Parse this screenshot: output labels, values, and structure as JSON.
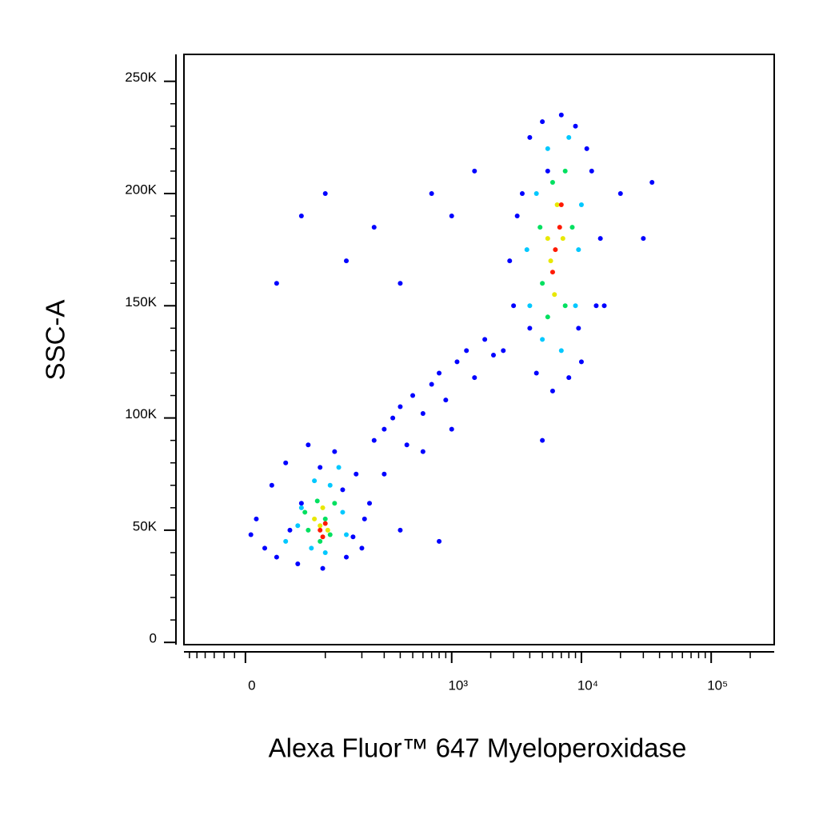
{
  "chart_data": {
    "type": "scatter",
    "x_label": "Alexa Fluor™ 647 Myeloperoxidase",
    "y_label": "SSC-A",
    "xscale": "asinh",
    "xscale_linear_width": 51.5,
    "xlim": [
      -68,
      306000
    ],
    "ylim": [
      -1000,
      262000
    ],
    "xticks": [
      0,
      {
        "value": 1000,
        "label": "10³"
      },
      {
        "value": 10000,
        "label": "10⁴"
      },
      {
        "value": 100000,
        "label": "10⁵"
      }
    ],
    "xminor_ticks": [
      -60,
      -50,
      -40,
      -30,
      -20,
      -10,
      100,
      200,
      300,
      400,
      500,
      600,
      700,
      800,
      900,
      2000,
      3000,
      4000,
      5000,
      6000,
      7000,
      8000,
      9000,
      20000,
      30000,
      40000,
      50000,
      60000,
      70000,
      80000,
      90000,
      200000
    ],
    "yticks": [
      0,
      {
        "value": 50000,
        "label": "50K"
      },
      {
        "value": 100000,
        "label": "100K"
      },
      {
        "value": 150000,
        "label": "150K"
      },
      {
        "value": 200000,
        "label": "200K"
      },
      {
        "value": 250000,
        "label": "250K"
      }
    ],
    "yminor_ticks": [
      10000,
      20000,
      30000,
      40000,
      60000,
      70000,
      80000,
      90000,
      110000,
      120000,
      130000,
      140000,
      160000,
      170000,
      180000,
      190000,
      210000,
      220000,
      230000,
      240000
    ],
    "series": [
      {
        "color": "#0000ff",
        "x": [
          10,
          18,
          25,
          30,
          40,
          55,
          70,
          95,
          120,
          150,
          180,
          210,
          230,
          200,
          5,
          60,
          140,
          45,
          170,
          90,
          250,
          300,
          350,
          400,
          450,
          500,
          600,
          700,
          800,
          900,
          1100,
          1300,
          1500,
          1800,
          2100,
          300,
          600,
          1000,
          30,
          60,
          100,
          150,
          250,
          400,
          700,
          1000,
          1500,
          20000,
          30000,
          15000,
          35000,
          5000,
          800,
          400,
          2500,
          3000,
          3500,
          4000,
          5000,
          7000,
          9000,
          12000,
          14000,
          13000,
          10000,
          8000,
          6000,
          4500,
          2800,
          3200,
          11000,
          5500,
          9500,
          4000
        ],
        "y": [
          55000,
          42000,
          70000,
          38000,
          80000,
          35000,
          88000,
          33000,
          85000,
          38000,
          75000,
          55000,
          62000,
          42000,
          48000,
          62000,
          68000,
          50000,
          47000,
          78000,
          90000,
          95000,
          100000,
          105000,
          88000,
          110000,
          102000,
          115000,
          120000,
          108000,
          125000,
          130000,
          118000,
          135000,
          128000,
          75000,
          85000,
          95000,
          160000,
          190000,
          200000,
          170000,
          185000,
          160000,
          200000,
          190000,
          210000,
          200000,
          180000,
          150000,
          205000,
          90000,
          45000,
          50000,
          130000,
          150000,
          200000,
          225000,
          232000,
          235000,
          230000,
          210000,
          180000,
          150000,
          125000,
          118000,
          112000,
          120000,
          170000,
          190000,
          220000,
          210000,
          140000,
          140000
        ]
      },
      {
        "color": "#00c8ff",
        "x": [
          40,
          60,
          80,
          110,
          140,
          150,
          100,
          55,
          130,
          75,
          4000,
          4500,
          5500,
          8000,
          10000,
          9000,
          7000,
          5000,
          3800,
          9500
        ],
        "y": [
          45000,
          60000,
          72000,
          70000,
          58000,
          48000,
          40000,
          52000,
          78000,
          42000,
          150000,
          200000,
          220000,
          225000,
          195000,
          150000,
          130000,
          135000,
          175000,
          175000
        ]
      },
      {
        "color": "#00e060",
        "x": [
          70,
          85,
          100,
          120,
          90,
          65,
          110,
          5000,
          6000,
          7500,
          8500,
          7500,
          5500,
          4800
        ],
        "y": [
          50000,
          63000,
          55000,
          62000,
          45000,
          58000,
          48000,
          160000,
          205000,
          210000,
          185000,
          150000,
          145000,
          185000
        ]
      },
      {
        "color": "#e8e800",
        "x": [
          80,
          95,
          105,
          90,
          5800,
          6500,
          7200,
          6200,
          5500
        ],
        "y": [
          55000,
          60000,
          50000,
          52000,
          170000,
          195000,
          180000,
          155000,
          180000
        ]
      },
      {
        "color": "#ff1a00",
        "x": [
          90,
          100,
          95,
          6300,
          6800,
          6000,
          7000
        ],
        "y": [
          50000,
          53000,
          47000,
          175000,
          185000,
          165000,
          195000
        ]
      }
    ]
  }
}
